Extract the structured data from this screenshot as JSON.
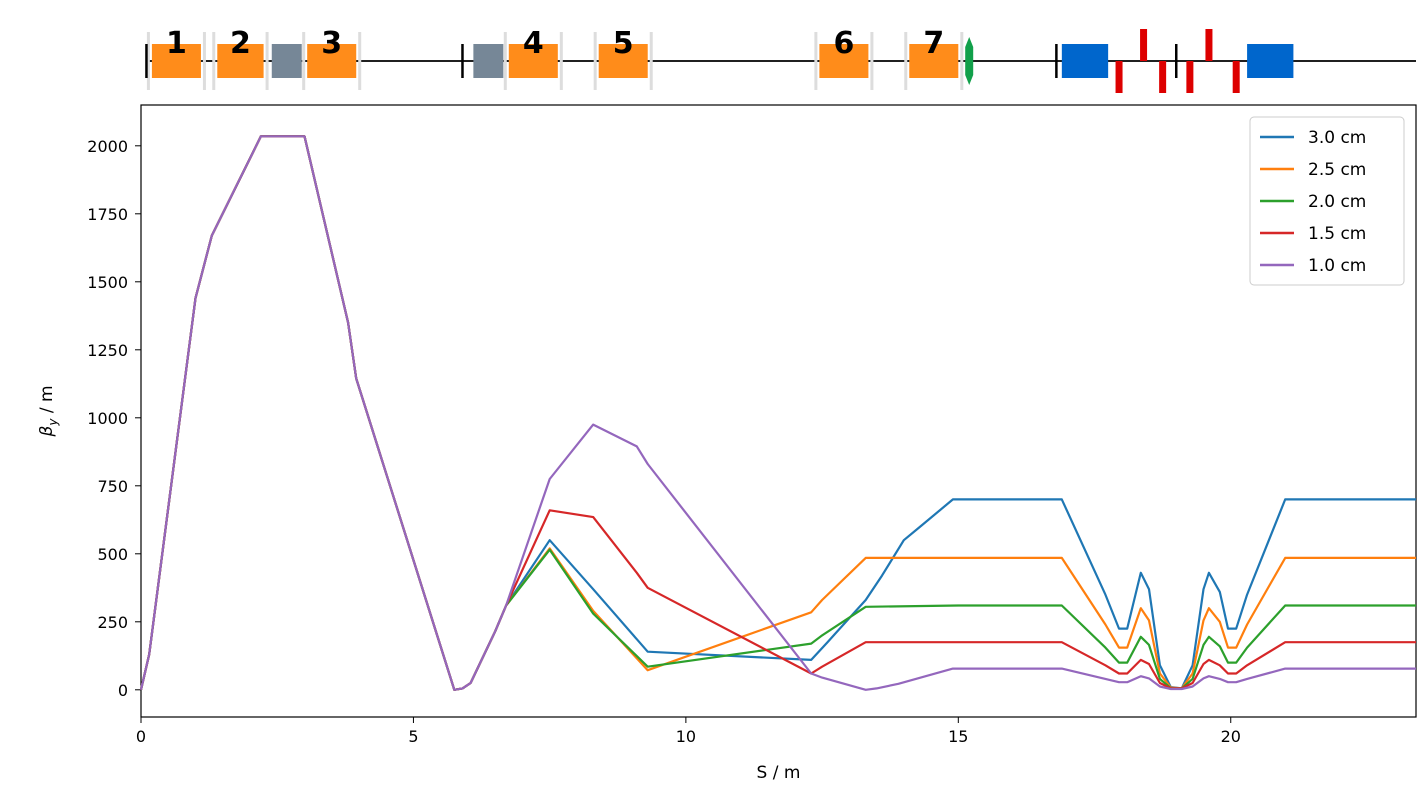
{
  "colors": {
    "dipole": "#ff8c1a",
    "gray_element": "#768797",
    "blue_element": "#0066cc",
    "red_element": "#dd0000",
    "green_marker": "#11a04a",
    "support": "#dddddd"
  },
  "beamline": {
    "extent_m": [
      0,
      23.4
    ],
    "labels": [
      "1",
      "2",
      "3",
      "4",
      "5",
      "6",
      "7"
    ],
    "dipoles": [
      {
        "s0": 0.2,
        "s1": 1.1,
        "label": "1"
      },
      {
        "s0": 1.4,
        "s1": 2.25,
        "label": "2"
      },
      {
        "s0": 3.05,
        "s1": 3.95,
        "label": "3"
      },
      {
        "s0": 6.75,
        "s1": 7.65,
        "label": "4"
      },
      {
        "s0": 8.4,
        "s1": 9.3,
        "label": "5"
      },
      {
        "s0": 12.45,
        "s1": 13.35,
        "label": "6"
      },
      {
        "s0": 14.1,
        "s1": 15.0,
        "label": "7"
      }
    ],
    "gray_blocks": [
      {
        "s0": 2.4,
        "s1": 2.95
      },
      {
        "s0": 6.1,
        "s1": 6.65
      }
    ],
    "blue_blocks": [
      {
        "s0": 16.9,
        "s1": 17.75
      },
      {
        "s0": 20.3,
        "s1": 21.15
      }
    ],
    "red_up": [
      18.4,
      19.6
    ],
    "red_down": [
      17.95,
      18.75,
      19.25,
      20.1
    ],
    "ticks": [
      0.1,
      5.9,
      16.8,
      19.0
    ],
    "green_marker": 15.2
  },
  "chart_data": {
    "type": "line",
    "xlabel": "S / m",
    "ylabel_main": "β",
    "ylabel_sub": "y",
    "ylabel_unit": " / m",
    "xlim": [
      0,
      23.4
    ],
    "ylim": [
      -100,
      2150
    ],
    "xticks": [
      0,
      5,
      10,
      15,
      20
    ],
    "yticks": [
      0,
      250,
      500,
      750,
      1000,
      1250,
      1500,
      1750,
      2000
    ],
    "grid": false,
    "legend_position": "top-right",
    "series": [
      {
        "name": "3.0 cm",
        "color": "#1f77b4",
        "points": [
          [
            0,
            0
          ],
          [
            0.15,
            130
          ],
          [
            1.0,
            1440
          ],
          [
            1.3,
            1670
          ],
          [
            2.2,
            2035
          ],
          [
            3.0,
            2035
          ],
          [
            3.8,
            1350
          ],
          [
            3.95,
            1145
          ],
          [
            5.75,
            0
          ],
          [
            5.9,
            5
          ],
          [
            6.05,
            25
          ],
          [
            6.5,
            215
          ],
          [
            6.7,
            310
          ],
          [
            7.5,
            550
          ],
          [
            8.3,
            370
          ],
          [
            9.3,
            140
          ],
          [
            12.3,
            110
          ],
          [
            12.6,
            175
          ],
          [
            13.3,
            330
          ],
          [
            13.6,
            420
          ],
          [
            14.0,
            550
          ],
          [
            14.3,
            600
          ],
          [
            14.9,
            700
          ],
          [
            16.9,
            700
          ],
          [
            17.7,
            350
          ],
          [
            17.95,
            225
          ],
          [
            18.1,
            225
          ],
          [
            18.35,
            430
          ],
          [
            18.5,
            370
          ],
          [
            18.7,
            90
          ],
          [
            18.9,
            10
          ],
          [
            19.1,
            5
          ],
          [
            19.3,
            90
          ],
          [
            19.5,
            370
          ],
          [
            19.6,
            430
          ],
          [
            19.8,
            360
          ],
          [
            19.95,
            225
          ],
          [
            20.1,
            225
          ],
          [
            20.3,
            350
          ],
          [
            21.0,
            700
          ],
          [
            23.4,
            700
          ]
        ]
      },
      {
        "name": "2.5 cm",
        "color": "#ff7f0e",
        "points": [
          [
            0,
            0
          ],
          [
            0.15,
            130
          ],
          [
            1.0,
            1440
          ],
          [
            1.3,
            1670
          ],
          [
            2.2,
            2035
          ],
          [
            3.0,
            2035
          ],
          [
            3.8,
            1350
          ],
          [
            3.95,
            1145
          ],
          [
            5.75,
            0
          ],
          [
            5.9,
            5
          ],
          [
            6.05,
            25
          ],
          [
            6.5,
            215
          ],
          [
            6.7,
            310
          ],
          [
            7.5,
            520
          ],
          [
            8.3,
            290
          ],
          [
            9.3,
            72
          ],
          [
            12.3,
            285
          ],
          [
            12.5,
            330
          ],
          [
            13.3,
            485
          ],
          [
            16.9,
            485
          ],
          [
            17.7,
            240
          ],
          [
            17.95,
            155
          ],
          [
            18.1,
            155
          ],
          [
            18.35,
            300
          ],
          [
            18.5,
            255
          ],
          [
            18.7,
            60
          ],
          [
            18.9,
            8
          ],
          [
            19.1,
            5
          ],
          [
            19.3,
            60
          ],
          [
            19.5,
            255
          ],
          [
            19.6,
            300
          ],
          [
            19.8,
            250
          ],
          [
            19.95,
            155
          ],
          [
            20.1,
            155
          ],
          [
            20.3,
            240
          ],
          [
            21.0,
            485
          ],
          [
            23.4,
            485
          ]
        ]
      },
      {
        "name": "2.0 cm",
        "color": "#2ca02c",
        "points": [
          [
            0,
            0
          ],
          [
            0.15,
            130
          ],
          [
            1.0,
            1440
          ],
          [
            1.3,
            1670
          ],
          [
            2.2,
            2035
          ],
          [
            3.0,
            2035
          ],
          [
            3.8,
            1350
          ],
          [
            3.95,
            1145
          ],
          [
            5.75,
            0
          ],
          [
            5.9,
            5
          ],
          [
            6.05,
            25
          ],
          [
            6.5,
            215
          ],
          [
            6.7,
            310
          ],
          [
            7.5,
            515
          ],
          [
            8.3,
            280
          ],
          [
            9.3,
            85
          ],
          [
            12.3,
            170
          ],
          [
            12.5,
            200
          ],
          [
            13.3,
            305
          ],
          [
            15.0,
            310
          ],
          [
            16.9,
            310
          ],
          [
            17.7,
            155
          ],
          [
            17.95,
            100
          ],
          [
            18.1,
            100
          ],
          [
            18.35,
            195
          ],
          [
            18.5,
            165
          ],
          [
            18.7,
            40
          ],
          [
            18.9,
            6
          ],
          [
            19.1,
            5
          ],
          [
            19.3,
            40
          ],
          [
            19.5,
            165
          ],
          [
            19.6,
            195
          ],
          [
            19.8,
            160
          ],
          [
            19.95,
            100
          ],
          [
            20.1,
            100
          ],
          [
            20.3,
            155
          ],
          [
            21.0,
            310
          ],
          [
            23.4,
            310
          ]
        ]
      },
      {
        "name": "1.5 cm",
        "color": "#d62728",
        "points": [
          [
            0,
            0
          ],
          [
            0.15,
            130
          ],
          [
            1.0,
            1440
          ],
          [
            1.3,
            1670
          ],
          [
            2.2,
            2035
          ],
          [
            3.0,
            2035
          ],
          [
            3.8,
            1350
          ],
          [
            3.95,
            1145
          ],
          [
            5.75,
            0
          ],
          [
            5.9,
            5
          ],
          [
            6.05,
            25
          ],
          [
            6.5,
            215
          ],
          [
            6.7,
            310
          ],
          [
            7.5,
            660
          ],
          [
            8.3,
            635
          ],
          [
            9.1,
            430
          ],
          [
            9.3,
            375
          ],
          [
            12.3,
            60
          ],
          [
            12.5,
            85
          ],
          [
            13.3,
            175
          ],
          [
            16.9,
            175
          ],
          [
            17.7,
            90
          ],
          [
            17.95,
            60
          ],
          [
            18.1,
            60
          ],
          [
            18.35,
            110
          ],
          [
            18.5,
            95
          ],
          [
            18.7,
            25
          ],
          [
            18.9,
            5
          ],
          [
            19.1,
            5
          ],
          [
            19.3,
            25
          ],
          [
            19.5,
            95
          ],
          [
            19.6,
            110
          ],
          [
            19.8,
            90
          ],
          [
            19.95,
            60
          ],
          [
            20.1,
            60
          ],
          [
            20.3,
            90
          ],
          [
            21.0,
            175
          ],
          [
            23.4,
            175
          ]
        ]
      },
      {
        "name": "1.0 cm",
        "color": "#9467bd",
        "points": [
          [
            0,
            0
          ],
          [
            0.15,
            130
          ],
          [
            1.0,
            1440
          ],
          [
            1.3,
            1670
          ],
          [
            2.2,
            2035
          ],
          [
            3.0,
            2035
          ],
          [
            3.8,
            1350
          ],
          [
            3.95,
            1145
          ],
          [
            5.75,
            0
          ],
          [
            5.9,
            5
          ],
          [
            6.05,
            25
          ],
          [
            6.5,
            215
          ],
          [
            6.7,
            310
          ],
          [
            7.5,
            775
          ],
          [
            8.3,
            975
          ],
          [
            9.1,
            895
          ],
          [
            9.3,
            830
          ],
          [
            12.3,
            60
          ],
          [
            12.5,
            45
          ],
          [
            13.3,
            0
          ],
          [
            13.5,
            5
          ],
          [
            13.9,
            22
          ],
          [
            14.9,
            78
          ],
          [
            16.9,
            78
          ],
          [
            17.7,
            40
          ],
          [
            17.95,
            28
          ],
          [
            18.1,
            28
          ],
          [
            18.35,
            50
          ],
          [
            18.5,
            42
          ],
          [
            18.7,
            12
          ],
          [
            18.9,
            3
          ],
          [
            19.1,
            3
          ],
          [
            19.3,
            12
          ],
          [
            19.5,
            42
          ],
          [
            19.6,
            50
          ],
          [
            19.8,
            40
          ],
          [
            19.95,
            28
          ],
          [
            20.1,
            28
          ],
          [
            20.3,
            40
          ],
          [
            21.0,
            78
          ],
          [
            23.4,
            78
          ]
        ]
      }
    ]
  }
}
